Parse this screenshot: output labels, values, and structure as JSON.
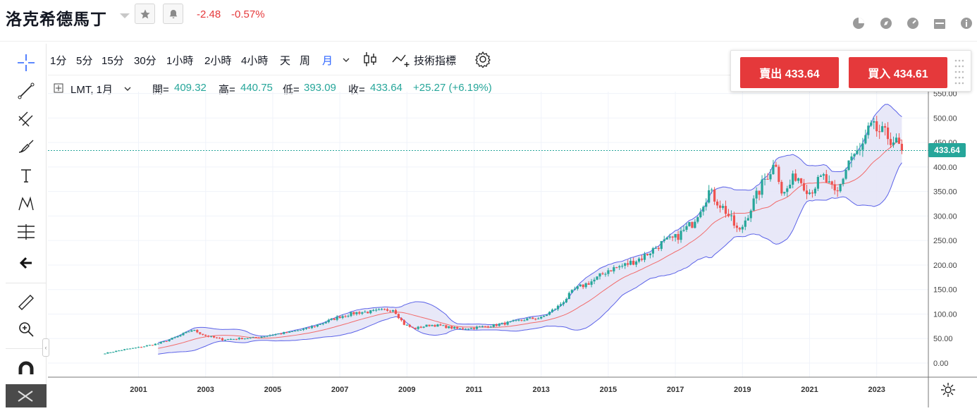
{
  "header": {
    "title": "洛克希德馬丁",
    "change": "-2.48",
    "change_pct": "-0.57%"
  },
  "toolbar": {
    "timeframes": [
      "1分",
      "5分",
      "15分",
      "30分",
      "1小時",
      "2小時",
      "4小時",
      "天",
      "周",
      "月"
    ],
    "active_timeframe": "月",
    "indicators_label": "技術指標"
  },
  "legend": {
    "symbol": "LMT, 1月",
    "open_label": "開=",
    "open": "409.32",
    "high_label": "高=",
    "high": "440.75",
    "low_label": "低=",
    "low": "393.09",
    "close_label": "收=",
    "close": "433.64",
    "change": "+25.27 (+6.19%)"
  },
  "trade": {
    "sell_label": "賣出 433.64",
    "buy_label": "買入 434.61"
  },
  "last_price_tag": "433.64",
  "colors": {
    "up": "#26a69a",
    "down": "#ef5350",
    "band_fill": "#e4e4f7",
    "band_line": "#5b62e8",
    "ma_line": "#f26b6b",
    "accent_red": "#e5393b",
    "active_blue": "#2962ff"
  },
  "chart_data": {
    "type": "candlestick",
    "interval": "monthly",
    "ylim": [
      -20,
      560
    ],
    "y_ticks": [
      "0.00",
      "50.00",
      "100.00",
      "150.00",
      "200.00",
      "250.00",
      "300.00",
      "350.00",
      "400.00",
      "450.00",
      "500.00",
      "550.00"
    ],
    "x_labels": [
      "2001",
      "2003",
      "2005",
      "2007",
      "2009",
      "2011",
      "2013",
      "2015",
      "2017",
      "2019",
      "2021",
      "2023"
    ],
    "last_price": 433.64,
    "overlays": [
      "bollinger_bands",
      "moving_average"
    ],
    "anchors": [
      [
        2000.0,
        20
      ],
      [
        2000.6,
        28
      ],
      [
        2001.0,
        32
      ],
      [
        2001.6,
        40
      ],
      [
        2002.2,
        55
      ],
      [
        2002.6,
        68
      ],
      [
        2003.0,
        56
      ],
      [
        2003.5,
        48
      ],
      [
        2004.0,
        50
      ],
      [
        2004.5,
        52
      ],
      [
        2005.0,
        58
      ],
      [
        2005.5,
        63
      ],
      [
        2006.0,
        70
      ],
      [
        2006.5,
        82
      ],
      [
        2007.0,
        95
      ],
      [
        2007.5,
        103
      ],
      [
        2008.0,
        105
      ],
      [
        2008.6,
        110
      ],
      [
        2008.9,
        80
      ],
      [
        2009.2,
        70
      ],
      [
        2009.7,
        78
      ],
      [
        2010.0,
        76
      ],
      [
        2010.5,
        70
      ],
      [
        2011.0,
        72
      ],
      [
        2011.5,
        76
      ],
      [
        2012.0,
        82
      ],
      [
        2012.6,
        90
      ],
      [
        2013.0,
        92
      ],
      [
        2013.5,
        115
      ],
      [
        2014.0,
        150
      ],
      [
        2014.6,
        170
      ],
      [
        2015.0,
        190
      ],
      [
        2015.5,
        200
      ],
      [
        2016.0,
        215
      ],
      [
        2016.6,
        245
      ],
      [
        2017.0,
        255
      ],
      [
        2017.5,
        285
      ],
      [
        2018.0,
        350
      ],
      [
        2018.5,
        310
      ],
      [
        2018.9,
        265
      ],
      [
        2019.2,
        310
      ],
      [
        2019.7,
        380
      ],
      [
        2020.0,
        410
      ],
      [
        2020.2,
        340
      ],
      [
        2020.6,
        385
      ],
      [
        2021.0,
        350
      ],
      [
        2021.4,
        380
      ],
      [
        2021.8,
        340
      ],
      [
        2022.2,
        420
      ],
      [
        2022.5,
        430
      ],
      [
        2022.8,
        480
      ],
      [
        2023.0,
        475
      ],
      [
        2023.5,
        455
      ],
      [
        2023.75,
        433.64
      ]
    ]
  }
}
